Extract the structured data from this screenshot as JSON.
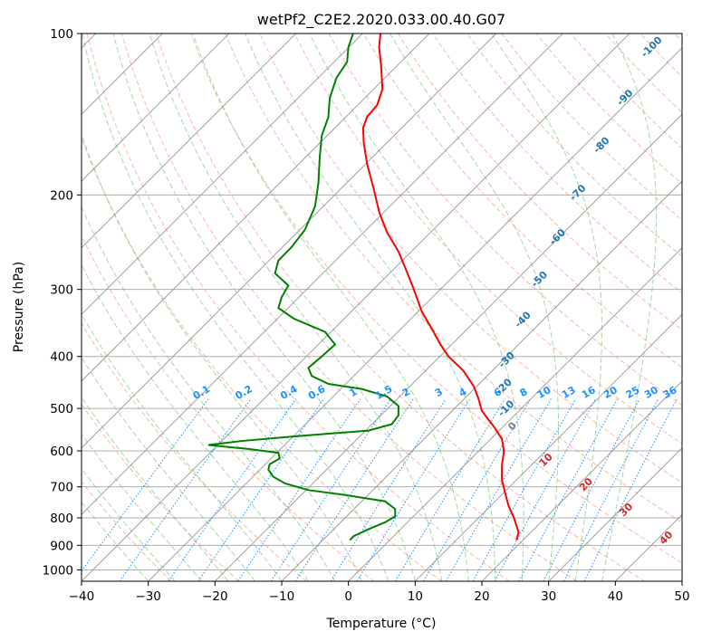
{
  "chart_data": {
    "type": "line",
    "chart_kind": "skew-T log-P",
    "title": "wetPf2_C2E2.2020.033.00.40.G07",
    "xlabel": "Temperature (°C)",
    "ylabel": "Pressure (hPa)",
    "xlim": [
      -40,
      50
    ],
    "ylim": [
      1050,
      100
    ],
    "y_scale": "log",
    "grid": true,
    "x_ticks": [
      -40,
      -30,
      -20,
      -10,
      0,
      10,
      20,
      30,
      40,
      50
    ],
    "y_ticks": [
      100,
      200,
      300,
      400,
      500,
      600,
      700,
      800,
      900,
      1000
    ],
    "series": [
      {
        "color": "#ff0000",
        "points": [
          [
            25.2,
            880
          ],
          [
            25.5,
            850
          ],
          [
            24.8,
            800
          ],
          [
            24.0,
            760
          ],
          [
            23.5,
            720
          ],
          [
            23.0,
            680
          ],
          [
            23.0,
            640
          ],
          [
            23.3,
            600
          ],
          [
            23.0,
            570
          ],
          [
            22.0,
            545
          ],
          [
            21.0,
            525
          ],
          [
            20.0,
            505
          ],
          [
            19.5,
            480
          ],
          [
            18.8,
            455
          ],
          [
            17.2,
            425
          ],
          [
            15.0,
            400
          ],
          [
            13.8,
            380
          ],
          [
            12.5,
            355
          ],
          [
            11.0,
            330
          ],
          [
            9.8,
            300
          ],
          [
            8.6,
            275
          ],
          [
            7.5,
            255
          ],
          [
            5.8,
            235
          ],
          [
            4.6,
            215
          ],
          [
            3.8,
            195
          ],
          [
            2.8,
            175
          ],
          [
            2.3,
            160
          ],
          [
            2.2,
            150
          ],
          [
            2.8,
            143
          ],
          [
            4.3,
            136
          ],
          [
            5.1,
            127
          ],
          [
            4.9,
            115
          ],
          [
            4.6,
            106
          ],
          [
            4.8,
            100
          ]
        ]
      },
      {
        "color": "#008000",
        "points": [
          [
            0.2,
            880
          ],
          [
            0.8,
            865
          ],
          [
            3.0,
            840
          ],
          [
            5.5,
            815
          ],
          [
            7.0,
            795
          ],
          [
            7.0,
            770
          ],
          [
            5.5,
            745
          ],
          [
            -0.5,
            725
          ],
          [
            -6.0,
            710
          ],
          [
            -9.5,
            690
          ],
          [
            -11.3,
            670
          ],
          [
            -12.0,
            650
          ],
          [
            -11.8,
            635
          ],
          [
            -10.3,
            620
          ],
          [
            -10.5,
            605
          ],
          [
            -15.0,
            595
          ],
          [
            -21.0,
            585
          ],
          [
            -16.0,
            575
          ],
          [
            -7.5,
            563
          ],
          [
            3.0,
            550
          ],
          [
            6.5,
            535
          ],
          [
            7.5,
            515
          ],
          [
            7.5,
            495
          ],
          [
            5.8,
            475
          ],
          [
            2.0,
            460
          ],
          [
            -3.0,
            450
          ],
          [
            -5.5,
            435
          ],
          [
            -6.0,
            420
          ],
          [
            -4.0,
            400
          ],
          [
            -2.0,
            380
          ],
          [
            -3.5,
            360
          ],
          [
            -8.2,
            340
          ],
          [
            -10.5,
            325
          ],
          [
            -10.0,
            310
          ],
          [
            -9.0,
            295
          ],
          [
            -11.0,
            280
          ],
          [
            -10.5,
            265
          ],
          [
            -8.5,
            250
          ],
          [
            -6.5,
            232
          ],
          [
            -5.0,
            210
          ],
          [
            -4.5,
            190
          ],
          [
            -4.3,
            170
          ],
          [
            -4.0,
            155
          ],
          [
            -3.0,
            143
          ],
          [
            -2.8,
            132
          ],
          [
            -1.8,
            121
          ],
          [
            -0.2,
            113
          ],
          [
            0.0,
            106
          ],
          [
            0.7,
            100
          ]
        ]
      }
    ],
    "dry_adiabat_labels": [
      "10",
      "20",
      "30",
      "40"
    ],
    "moist_adiabat_labels": [
      "-100",
      "-90",
      "-80",
      "-70",
      "-60",
      "-50",
      "-40",
      "-30",
      "-20",
      "-10",
      "0"
    ],
    "mixing_ratio_labels": [
      "0.1",
      "0.2",
      "0.4",
      "0.6",
      "1",
      "1.5",
      "2",
      "3",
      "4",
      "6",
      "8",
      "10",
      "13",
      "16",
      "20",
      "25",
      "30",
      "36"
    ],
    "colors": {
      "dry_adiabats": "#f08060",
      "moist_adiabats": "#6bbf6b",
      "mixing_ratio": "#1e90ff",
      "isotherms": "#888888"
    }
  }
}
